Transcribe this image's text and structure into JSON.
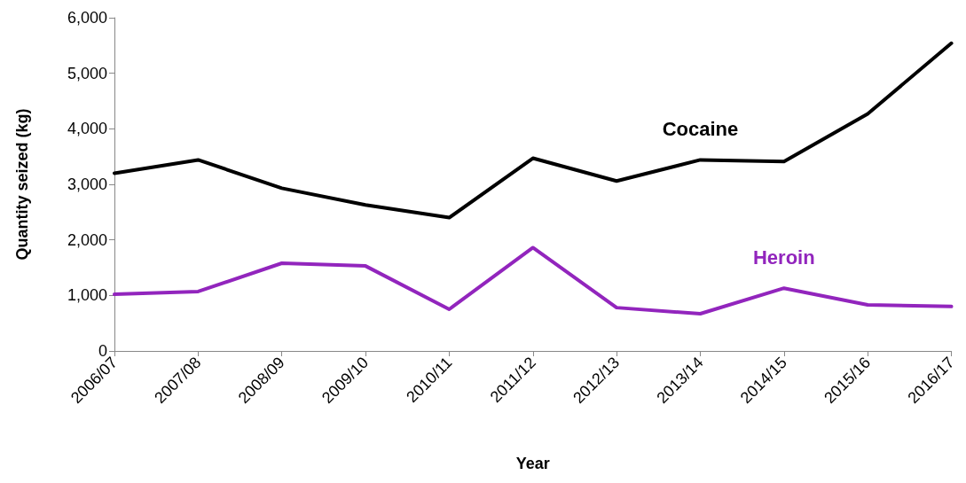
{
  "chart_data": {
    "type": "line",
    "xlabel": "Year",
    "ylabel": "Quantity seized (kg)",
    "categories": [
      "2006/07",
      "2007/08",
      "2008/09",
      "2009/10",
      "2010/11",
      "2011/12",
      "2012/13",
      "2013/14",
      "2014/15",
      "2015/16",
      "2016/17"
    ],
    "series": [
      {
        "name": "Cocaine",
        "color": "#000000",
        "values": [
          3200,
          3440,
          2930,
          2630,
          2400,
          3470,
          3060,
          3440,
          3410,
          4270,
          5540
        ]
      },
      {
        "name": "Heroin",
        "color": "#9225bd",
        "values": [
          1020,
          1070,
          1580,
          1530,
          750,
          1860,
          780,
          670,
          1130,
          830,
          800
        ]
      }
    ],
    "ylim": [
      0,
      6000
    ],
    "yticks": [
      0,
      {
        "value": 1000,
        "label": "1,000"
      },
      {
        "value": 2000,
        "label": "2,000"
      },
      {
        "value": 3000,
        "label": "3,000"
      },
      {
        "value": 4000,
        "label": "4,000"
      },
      {
        "value": 5000,
        "label": "5,000"
      },
      {
        "value": 6000,
        "label": "6,000"
      }
    ],
    "grid": false,
    "legend": false,
    "marker": "none",
    "line_style": "solid"
  }
}
